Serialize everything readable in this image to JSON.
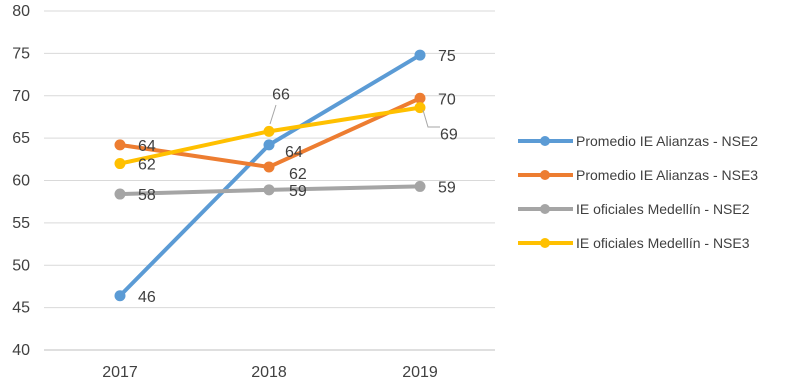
{
  "chart_data": {
    "type": "line",
    "categories": [
      "2017",
      "2018",
      "2019"
    ],
    "ylim": [
      40,
      80
    ],
    "yticks": [
      "40",
      "45",
      "50",
      "55",
      "60",
      "65",
      "70",
      "75",
      "80"
    ],
    "grid": true,
    "legend_position": "right",
    "series": [
      {
        "name": "Promedio IE Alianzas - NSE2",
        "color": "#5B9BD5",
        "values": [
          46.4,
          64.2,
          74.8
        ],
        "labels": [
          "46",
          "64",
          "75"
        ]
      },
      {
        "name": "Promedio IE Alianzas - NSE3",
        "color": "#ED7D31",
        "values": [
          64.2,
          61.6,
          69.7
        ],
        "labels": [
          "64",
          "62",
          "70"
        ]
      },
      {
        "name": "IE oficiales Medellín - NSE2",
        "color": "#A5A5A5",
        "values": [
          58.4,
          58.9,
          59.3
        ],
        "labels": [
          "58",
          "59",
          "59"
        ]
      },
      {
        "name": "IE oficiales Medellín - NSE3",
        "color": "#FFC000",
        "values": [
          62.0,
          65.8,
          68.6
        ],
        "labels": [
          "62",
          "66",
          "69"
        ]
      }
    ]
  }
}
